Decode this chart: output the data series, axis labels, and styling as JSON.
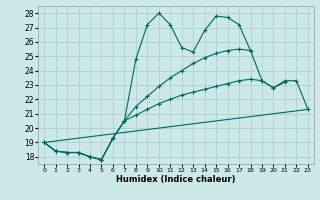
{
  "xlabel": "Humidex (Indice chaleur)",
  "xlim": [
    -0.5,
    23.5
  ],
  "ylim": [
    17.5,
    28.5
  ],
  "xticks": [
    0,
    1,
    2,
    3,
    4,
    5,
    6,
    7,
    8,
    9,
    10,
    11,
    12,
    13,
    14,
    15,
    16,
    17,
    18,
    19,
    20,
    21,
    22,
    23
  ],
  "yticks": [
    18,
    19,
    20,
    21,
    22,
    23,
    24,
    25,
    26,
    27,
    28
  ],
  "background_color": "#cce8e8",
  "grid_color": "#aacccc",
  "line_color": "#006666",
  "lines": [
    {
      "x": [
        0,
        1,
        2,
        3,
        4,
        5,
        6,
        7,
        8,
        9,
        10,
        11,
        12,
        13,
        14,
        15,
        16,
        17,
        18,
        19,
        20,
        21
      ],
      "y": [
        19.0,
        18.4,
        18.3,
        18.3,
        18.0,
        17.8,
        19.3,
        20.5,
        24.8,
        27.2,
        28.0,
        27.2,
        25.6,
        25.3,
        26.8,
        27.8,
        27.7,
        27.2,
        25.4,
        23.3,
        22.8,
        23.2
      ],
      "marker": true
    },
    {
      "x": [
        0,
        1,
        2,
        3,
        4,
        5,
        6,
        7,
        8,
        9,
        10,
        11,
        12,
        13,
        14,
        15,
        16,
        17,
        18
      ],
      "y": [
        19.0,
        18.4,
        18.3,
        18.3,
        18.0,
        17.8,
        19.3,
        20.5,
        21.5,
        22.2,
        22.9,
        23.5,
        24.0,
        24.5,
        24.9,
        25.2,
        25.4,
        25.5,
        25.4
      ],
      "marker": true
    },
    {
      "x": [
        0,
        1,
        2,
        3,
        4,
        5,
        6,
        7,
        8,
        9,
        10,
        11,
        12,
        13,
        14,
        15,
        16,
        17,
        18,
        19,
        20,
        21,
        22,
        23
      ],
      "y": [
        19.0,
        18.4,
        18.3,
        18.3,
        18.0,
        17.8,
        19.3,
        20.5,
        20.9,
        21.3,
        21.7,
        22.0,
        22.3,
        22.5,
        22.7,
        22.9,
        23.1,
        23.3,
        23.4,
        23.3,
        22.8,
        23.3,
        23.3,
        21.3
      ],
      "marker": true
    },
    {
      "x": [
        0,
        23
      ],
      "y": [
        19.0,
        21.3
      ],
      "marker": false
    }
  ]
}
